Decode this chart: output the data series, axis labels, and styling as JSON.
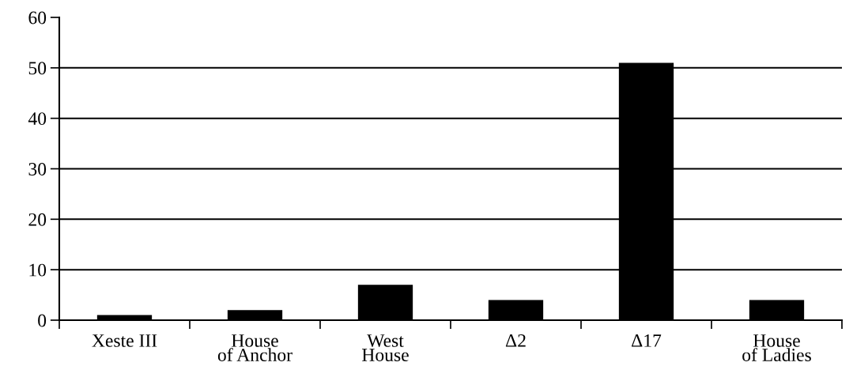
{
  "chart_data": {
    "type": "bar",
    "categories": [
      "Xeste III",
      "House\nof Anchor",
      "West\nHouse",
      "Δ2",
      "Δ17",
      "House\nof Ladies"
    ],
    "values": [
      1,
      2,
      7,
      4,
      51,
      4
    ],
    "color": "#000000",
    "ylim": [
      0,
      60
    ],
    "yticks": [
      0,
      10,
      20,
      30,
      40,
      50,
      60
    ],
    "grid": "y",
    "legend": false
  }
}
